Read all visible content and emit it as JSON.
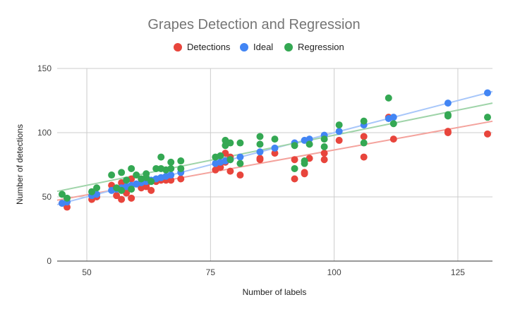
{
  "chart_data": {
    "type": "scatter",
    "title": "Grapes Detection and Regression",
    "xlabel": "Number of labels",
    "ylabel": "Number of detections",
    "xlim": [
      44,
      132
    ],
    "ylim": [
      0,
      150
    ],
    "x_ticks": [
      50,
      75,
      100,
      125
    ],
    "y_ticks": [
      0,
      50,
      100,
      150
    ],
    "grid": true,
    "legend_position": "top",
    "series": [
      {
        "name": "Detections",
        "color": "#e8453c",
        "points": [
          [
            45,
            45
          ],
          [
            46,
            42
          ],
          [
            51,
            48
          ],
          [
            52,
            50
          ],
          [
            55,
            59
          ],
          [
            56,
            51
          ],
          [
            57,
            61
          ],
          [
            57,
            48
          ],
          [
            58,
            53
          ],
          [
            59,
            49
          ],
          [
            59,
            64
          ],
          [
            60,
            60
          ],
          [
            61,
            57
          ],
          [
            62,
            58
          ],
          [
            62,
            60
          ],
          [
            63,
            55
          ],
          [
            64,
            62
          ],
          [
            65,
            63
          ],
          [
            66,
            63
          ],
          [
            67,
            63
          ],
          [
            69,
            64
          ],
          [
            76,
            71
          ],
          [
            77,
            73
          ],
          [
            77,
            76
          ],
          [
            78,
            77
          ],
          [
            78,
            84
          ],
          [
            79,
            81
          ],
          [
            79,
            70
          ],
          [
            81,
            67
          ],
          [
            85,
            79
          ],
          [
            85,
            80
          ],
          [
            88,
            84
          ],
          [
            92,
            64
          ],
          [
            92,
            79
          ],
          [
            94,
            69
          ],
          [
            94,
            68
          ],
          [
            95,
            80
          ],
          [
            98,
            79
          ],
          [
            98,
            84
          ],
          [
            101,
            94
          ],
          [
            106,
            97
          ],
          [
            106,
            81
          ],
          [
            111,
            112
          ],
          [
            112,
            95
          ],
          [
            123,
            100
          ],
          [
            123,
            101
          ],
          [
            131,
            99
          ]
        ]
      },
      {
        "name": "Ideal",
        "color": "#4285f4",
        "points": [
          [
            45,
            45
          ],
          [
            46,
            46
          ],
          [
            51,
            51
          ],
          [
            52,
            52
          ],
          [
            55,
            55
          ],
          [
            56,
            56
          ],
          [
            57,
            57
          ],
          [
            58,
            58
          ],
          [
            59,
            59
          ],
          [
            60,
            60
          ],
          [
            61,
            61
          ],
          [
            62,
            62
          ],
          [
            63,
            63
          ],
          [
            64,
            64
          ],
          [
            65,
            65
          ],
          [
            66,
            66
          ],
          [
            67,
            67
          ],
          [
            69,
            69
          ],
          [
            76,
            76
          ],
          [
            77,
            77
          ],
          [
            78,
            78
          ],
          [
            79,
            79
          ],
          [
            81,
            81
          ],
          [
            85,
            85
          ],
          [
            88,
            88
          ],
          [
            92,
            92
          ],
          [
            94,
            94
          ],
          [
            95,
            95
          ],
          [
            98,
            98
          ],
          [
            101,
            101
          ],
          [
            106,
            106
          ],
          [
            111,
            111
          ],
          [
            112,
            112
          ],
          [
            123,
            123
          ],
          [
            131,
            131
          ]
        ]
      },
      {
        "name": "Regression",
        "color": "#34a853",
        "points": [
          [
            45,
            52
          ],
          [
            46,
            49
          ],
          [
            51,
            54
          ],
          [
            52,
            57
          ],
          [
            55,
            67
          ],
          [
            56,
            57
          ],
          [
            57,
            69
          ],
          [
            57,
            55
          ],
          [
            58,
            63
          ],
          [
            59,
            72
          ],
          [
            59,
            56
          ],
          [
            60,
            67
          ],
          [
            61,
            64
          ],
          [
            62,
            68
          ],
          [
            62,
            65
          ],
          [
            63,
            62
          ],
          [
            64,
            72
          ],
          [
            65,
            81
          ],
          [
            65,
            72
          ],
          [
            66,
            71
          ],
          [
            67,
            77
          ],
          [
            67,
            72
          ],
          [
            69,
            78
          ],
          [
            69,
            72
          ],
          [
            76,
            81
          ],
          [
            77,
            82
          ],
          [
            78,
            90
          ],
          [
            78,
            94
          ],
          [
            79,
            92
          ],
          [
            79,
            79
          ],
          [
            81,
            92
          ],
          [
            81,
            76
          ],
          [
            85,
            97
          ],
          [
            85,
            91
          ],
          [
            88,
            95
          ],
          [
            92,
            90
          ],
          [
            92,
            72
          ],
          [
            94,
            76
          ],
          [
            94,
            78
          ],
          [
            95,
            91
          ],
          [
            98,
            95
          ],
          [
            98,
            89
          ],
          [
            101,
            106
          ],
          [
            106,
            109
          ],
          [
            106,
            92
          ],
          [
            111,
            127
          ],
          [
            112,
            107
          ],
          [
            123,
            114
          ],
          [
            123,
            113
          ],
          [
            131,
            112
          ]
        ]
      }
    ],
    "trendlines": [
      {
        "series": "Detections",
        "color": "#f4a39d",
        "x": [
          44,
          132
        ],
        "y": [
          47.4,
          108.9
        ]
      },
      {
        "series": "Ideal",
        "color": "#a8c7fa",
        "x": [
          44,
          132
        ],
        "y": [
          44,
          132
        ]
      },
      {
        "series": "Regression",
        "color": "#9fd4a9",
        "x": [
          44,
          132
        ],
        "y": [
          54.3,
          123
        ]
      }
    ]
  }
}
